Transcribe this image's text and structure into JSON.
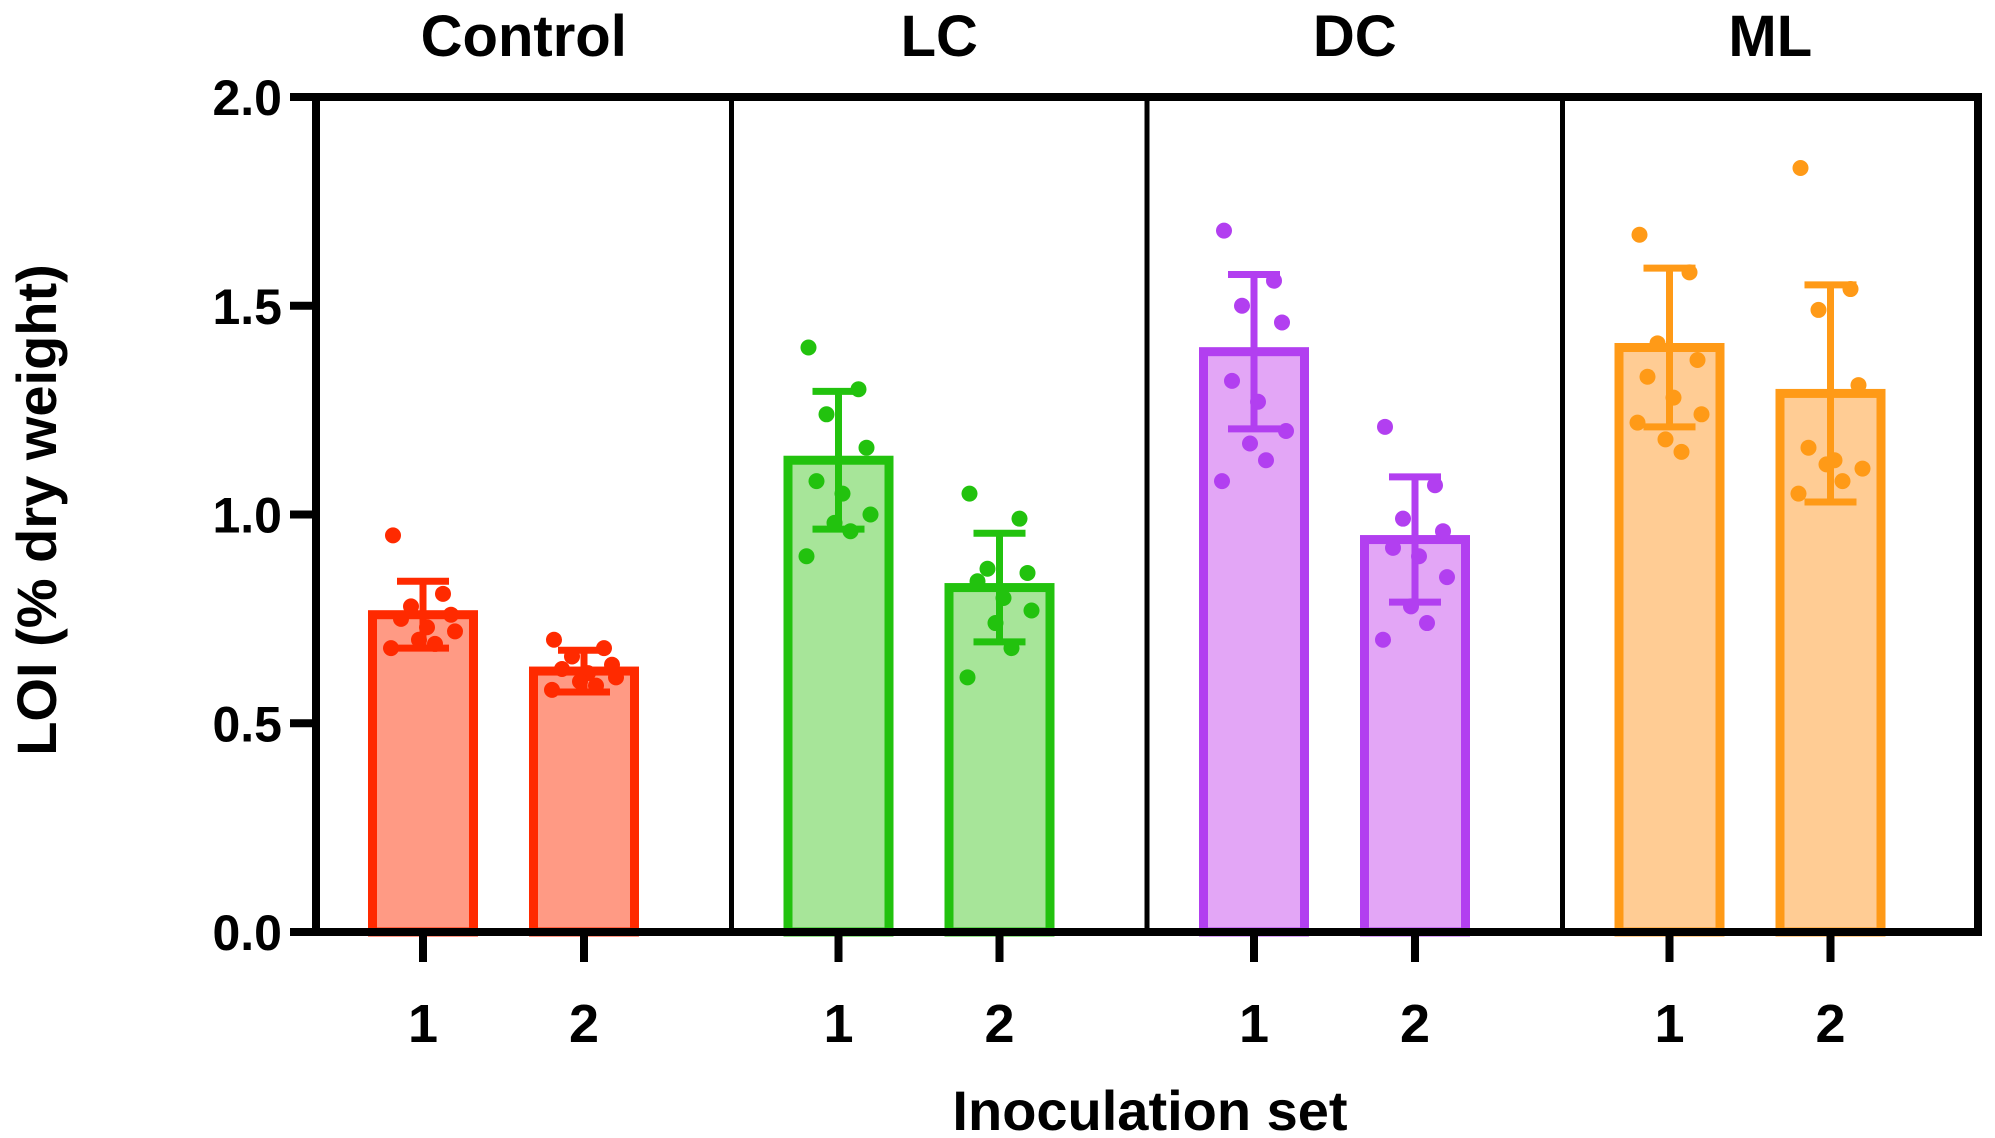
{
  "chart_data": {
    "type": "bar",
    "title": "",
    "xlabel": "Inoculation set",
    "ylabel": "LOI (% dry weight)",
    "ylim": [
      0,
      2.0
    ],
    "yticks": [
      "0.0",
      "0.5",
      "1.0",
      "1.5",
      "2.0"
    ],
    "ytick_values": [
      0.0,
      0.5,
      1.0,
      1.5,
      2.0
    ],
    "categories": [
      "1",
      "2"
    ],
    "grid": false,
    "legend": "none",
    "panels": [
      {
        "name": "Control",
        "stroke": "#ff2a00",
        "fill": "#ff9a84",
        "bars": [
          {
            "category": "1",
            "mean": 0.76,
            "sd": 0.08,
            "points": [
              0.95,
              0.81,
              0.78,
              0.76,
              0.75,
              0.73,
              0.72,
              0.7,
              0.69,
              0.68
            ]
          },
          {
            "category": "2",
            "mean": 0.625,
            "sd": 0.05,
            "points": [
              0.7,
              0.68,
              0.66,
              0.64,
              0.63,
              0.62,
              0.61,
              0.6,
              0.59,
              0.58
            ]
          }
        ]
      },
      {
        "name": "LC",
        "stroke": "#22c20e",
        "fill": "#a7e599",
        "bars": [
          {
            "category": "1",
            "mean": 1.13,
            "sd": 0.165,
            "points": [
              1.4,
              1.3,
              1.24,
              1.16,
              1.08,
              1.05,
              1.0,
              0.98,
              0.96,
              0.9
            ]
          },
          {
            "category": "2",
            "mean": 0.825,
            "sd": 0.13,
            "points": [
              1.05,
              0.99,
              0.87,
              0.86,
              0.84,
              0.8,
              0.77,
              0.74,
              0.68,
              0.61
            ]
          }
        ]
      },
      {
        "name": "DC",
        "stroke": "#b23ff0",
        "fill": "#e3a6f6",
        "bars": [
          {
            "category": "1",
            "mean": 1.39,
            "sd": 0.185,
            "points": [
              1.68,
              1.56,
              1.5,
              1.46,
              1.32,
              1.27,
              1.2,
              1.17,
              1.13,
              1.08
            ]
          },
          {
            "category": "2",
            "mean": 0.94,
            "sd": 0.15,
            "points": [
              1.21,
              1.07,
              0.99,
              0.96,
              0.92,
              0.9,
              0.85,
              0.78,
              0.74,
              0.7
            ]
          }
        ]
      },
      {
        "name": "ML",
        "stroke": "#ff9a17",
        "fill": "#ffcc94",
        "bars": [
          {
            "category": "1",
            "mean": 1.4,
            "sd": 0.19,
            "points": [
              1.67,
              1.58,
              1.41,
              1.37,
              1.33,
              1.28,
              1.24,
              1.18,
              1.15,
              1.22
            ]
          },
          {
            "category": "2",
            "mean": 1.29,
            "sd": 0.26,
            "points": [
              1.83,
              1.54,
              1.49,
              1.31,
              1.16,
              1.13,
              1.11,
              1.12,
              1.08,
              1.05
            ]
          }
        ]
      }
    ]
  }
}
